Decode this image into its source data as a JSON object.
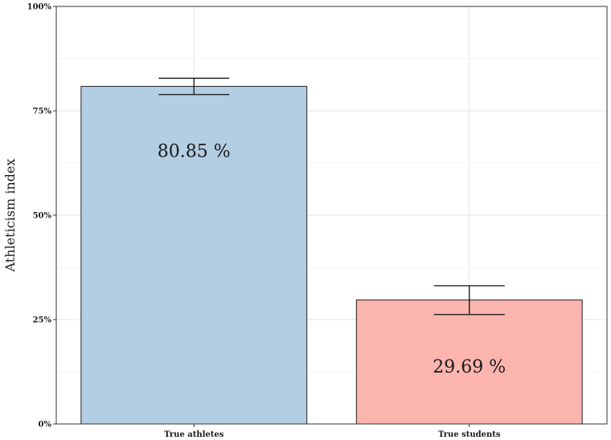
{
  "chart_data": {
    "type": "bar",
    "categories": [
      "True athletes",
      "True students"
    ],
    "values": [
      80.85,
      29.69
    ],
    "error_bars": [
      [
        78.9,
        82.8
      ],
      [
        26.2,
        33.1
      ]
    ],
    "data_labels": [
      "80.85 %",
      "29.69 %"
    ],
    "colors": [
      "#b3cde3",
      "#fbb4ae"
    ],
    "ylabel": "Athleticism index",
    "ylim": [
      0,
      100
    ],
    "yticks": [
      0,
      25,
      50,
      75,
      100
    ],
    "ytick_labels": [
      "0%",
      "25%",
      "50%",
      "75%",
      "100%"
    ],
    "grid": true
  }
}
